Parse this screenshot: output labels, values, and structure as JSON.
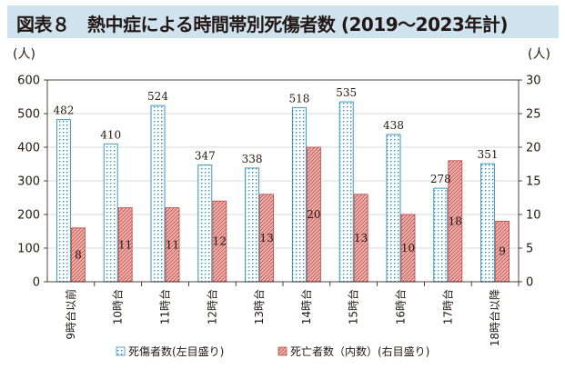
{
  "title": "図表８　熱中症による時間帯別死傷者数 (2019～2023年計)",
  "chart_data": {
    "type": "bar",
    "categories": [
      "9時台以前",
      "10時台",
      "11時台",
      "12時台",
      "13時台",
      "14時台",
      "15時台",
      "16時台",
      "17時台",
      "18時台以降"
    ],
    "series": [
      {
        "name": "死傷者数(左目盛り)",
        "axis": "left",
        "values": [
          482,
          410,
          524,
          347,
          338,
          518,
          535,
          438,
          278,
          351
        ],
        "pattern": "dotted",
        "color": "#2a8fb8"
      },
      {
        "name": "死亡者数（内数）(右目盛り)",
        "axis": "right",
        "values": [
          8,
          11,
          11,
          12,
          13,
          20,
          13,
          10,
          18,
          9
        ],
        "pattern": "hatched",
        "color": "#c0504d"
      }
    ],
    "y_left": {
      "unit": "(人)",
      "ylim": [
        0,
        600
      ],
      "ticks": [
        0,
        100,
        200,
        300,
        400,
        500,
        600
      ]
    },
    "y_right": {
      "unit": "(人)",
      "ylim": [
        0,
        30
      ],
      "ticks": [
        0,
        5,
        10,
        15,
        20,
        25,
        30
      ]
    },
    "grid": true,
    "legend_position": "bottom"
  }
}
